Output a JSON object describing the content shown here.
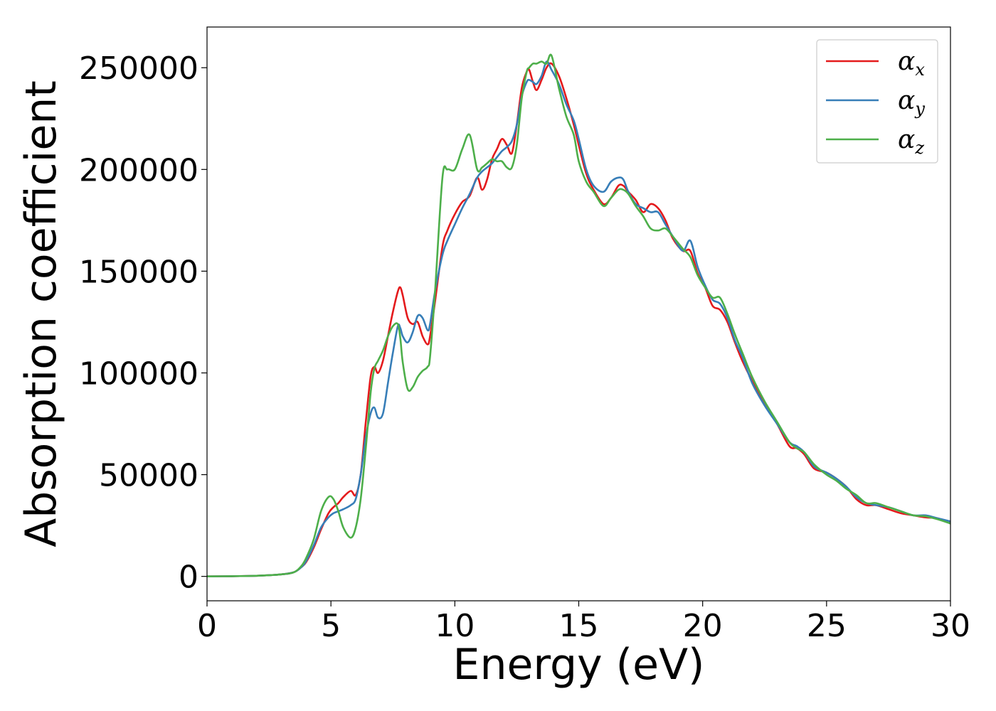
{
  "chart_data": {
    "type": "line",
    "title": "",
    "xlabel": "Energy (eV)",
    "ylabel": "Absorption coefficient",
    "xlim": [
      0,
      30
    ],
    "ylim": [
      -12000,
      270000
    ],
    "xticks": [
      0,
      5,
      10,
      15,
      20,
      25,
      30
    ],
    "yticks": [
      0,
      50000,
      100000,
      150000,
      200000,
      250000
    ],
    "grid": false,
    "legend_position": "top-right",
    "series": [
      {
        "name": "α_x",
        "base": "α",
        "sub": "x",
        "color": "#e41a1c",
        "x": [
          0,
          1,
          2,
          3,
          3.5,
          3.8,
          4.0,
          4.3,
          4.6,
          4.9,
          5.1,
          5.3,
          5.5,
          5.8,
          6.0,
          6.2,
          6.4,
          6.6,
          6.75,
          6.9,
          7.1,
          7.3,
          7.5,
          7.7,
          7.8,
          7.9,
          8.1,
          8.3,
          8.5,
          8.7,
          8.9,
          9.0,
          9.2,
          9.5,
          9.7,
          10.0,
          10.3,
          10.6,
          10.9,
          11.1,
          11.3,
          11.5,
          11.7,
          11.9,
          12.1,
          12.3,
          12.5,
          12.7,
          12.9,
          13.0,
          13.15,
          13.3,
          13.5,
          13.7,
          13.9,
          14.2,
          14.5,
          14.8,
          15.0,
          15.3,
          15.6,
          16.0,
          16.3,
          16.6,
          16.8,
          17.0,
          17.3,
          17.6,
          17.9,
          18.2,
          18.5,
          18.8,
          19.2,
          19.5,
          19.8,
          20.1,
          20.4,
          20.7,
          21.0,
          21.3,
          21.6,
          22.0,
          22.5,
          23.0,
          23.5,
          23.8,
          24.1,
          24.5,
          25.0,
          25.4,
          25.8,
          26.2,
          26.6,
          27.0,
          27.5,
          28.0,
          28.5,
          29.0,
          29.5,
          30.0
        ],
        "y": [
          0,
          100,
          300,
          1000,
          2000,
          4500,
          7000,
          14000,
          23000,
          31000,
          34000,
          36000,
          39000,
          42000,
          40000,
          50000,
          75000,
          98000,
          103000,
          100000,
          106000,
          118000,
          130000,
          140000,
          142000,
          138000,
          127000,
          124000,
          125000,
          118000,
          114000,
          118000,
          135000,
          162000,
          170000,
          178000,
          184000,
          187000,
          196000,
          190000,
          195000,
          205000,
          210000,
          215000,
          212000,
          208000,
          222000,
          240000,
          248000,
          249000,
          243000,
          239000,
          244000,
          250000,
          252000,
          246000,
          235000,
          222000,
          212000,
          198000,
          190000,
          183000,
          186000,
          192000,
          192000,
          189000,
          185000,
          179000,
          183000,
          181000,
          175000,
          166000,
          160000,
          160000,
          149000,
          142000,
          133000,
          131000,
          125000,
          115000,
          106000,
          96000,
          85000,
          75000,
          64000,
          63000,
          60000,
          53000,
          51000,
          48000,
          44000,
          38000,
          35000,
          35000,
          33000,
          31000,
          30000,
          29000,
          28500,
          26000
        ]
      },
      {
        "name": "α_y",
        "base": "α",
        "sub": "y",
        "color": "#377eb8",
        "x": [
          0,
          1,
          2,
          3,
          3.5,
          3.8,
          4.0,
          4.3,
          4.6,
          4.9,
          5.1,
          5.3,
          5.5,
          5.8,
          6.0,
          6.2,
          6.4,
          6.6,
          6.75,
          6.9,
          7.1,
          7.3,
          7.5,
          7.7,
          7.8,
          7.9,
          8.1,
          8.3,
          8.5,
          8.7,
          8.9,
          9.0,
          9.2,
          9.5,
          9.7,
          10.0,
          10.3,
          10.6,
          10.9,
          11.1,
          11.3,
          11.5,
          11.7,
          11.9,
          12.1,
          12.3,
          12.5,
          12.7,
          12.9,
          13.0,
          13.15,
          13.3,
          13.5,
          13.7,
          13.9,
          14.2,
          14.5,
          14.8,
          15.0,
          15.3,
          15.6,
          16.0,
          16.3,
          16.6,
          16.8,
          17.0,
          17.3,
          17.6,
          17.9,
          18.2,
          18.5,
          18.8,
          19.2,
          19.5,
          19.8,
          20.1,
          20.4,
          20.7,
          21.0,
          21.3,
          21.6,
          22.0,
          22.5,
          23.0,
          23.5,
          23.8,
          24.1,
          24.5,
          25.0,
          25.4,
          25.8,
          26.2,
          26.6,
          27.0,
          27.5,
          28.0,
          28.5,
          29.0,
          29.5,
          30.0
        ],
        "y": [
          0,
          100,
          300,
          1000,
          2000,
          4500,
          7500,
          15000,
          24000,
          29000,
          31000,
          32000,
          33000,
          35000,
          38000,
          50000,
          68000,
          80000,
          83000,
          78000,
          80000,
          95000,
          110000,
          123000,
          122000,
          118000,
          115000,
          120000,
          128000,
          127000,
          121000,
          124000,
          140000,
          158000,
          165000,
          173000,
          181000,
          188000,
          196000,
          199000,
          201000,
          203000,
          206000,
          209000,
          211000,
          214000,
          222000,
          236000,
          243000,
          244000,
          243000,
          242000,
          246000,
          253000,
          249000,
          242000,
          232000,
          224000,
          215000,
          200000,
          192000,
          189000,
          194000,
          196000,
          195000,
          189000,
          183000,
          181000,
          179000,
          179000,
          173000,
          167000,
          160000,
          165000,
          152000,
          143000,
          136000,
          134000,
          127000,
          116000,
          108000,
          95000,
          84000,
          75000,
          66000,
          64000,
          61000,
          54000,
          51000,
          48000,
          44000,
          39000,
          36000,
          35000,
          34000,
          32000,
          30000,
          30000,
          28500,
          27000
        ]
      },
      {
        "name": "α_z",
        "base": "α",
        "sub": "z",
        "color": "#4daf4a",
        "x": [
          0,
          1,
          2,
          3,
          3.5,
          3.8,
          4.0,
          4.3,
          4.6,
          4.9,
          5.1,
          5.3,
          5.5,
          5.8,
          6.0,
          6.2,
          6.4,
          6.6,
          6.75,
          6.9,
          7.1,
          7.3,
          7.5,
          7.7,
          7.8,
          7.9,
          8.1,
          8.3,
          8.5,
          8.7,
          8.9,
          9.0,
          9.2,
          9.5,
          9.7,
          10.0,
          10.3,
          10.6,
          10.9,
          11.1,
          11.3,
          11.5,
          11.7,
          11.9,
          12.1,
          12.3,
          12.5,
          12.7,
          12.9,
          13.0,
          13.15,
          13.3,
          13.5,
          13.7,
          13.9,
          14.2,
          14.5,
          14.8,
          15.0,
          15.3,
          15.6,
          16.0,
          16.3,
          16.6,
          16.8,
          17.0,
          17.3,
          17.6,
          17.9,
          18.2,
          18.5,
          18.8,
          19.2,
          19.5,
          19.8,
          20.1,
          20.4,
          20.7,
          21.0,
          21.3,
          21.6,
          22.0,
          22.5,
          23.0,
          23.5,
          23.8,
          24.1,
          24.5,
          25.0,
          25.4,
          25.8,
          26.2,
          26.6,
          27.0,
          27.5,
          28.0,
          28.5,
          29.0,
          29.5,
          30.0
        ],
        "y": [
          0,
          100,
          300,
          1000,
          2000,
          5000,
          9000,
          18000,
          32000,
          39000,
          38000,
          32000,
          24000,
          19000,
          24000,
          38000,
          62000,
          90000,
          102000,
          106000,
          111000,
          118000,
          123000,
          124000,
          117000,
          105000,
          92000,
          93000,
          98000,
          101000,
          103000,
          108000,
          140000,
          196000,
          200000,
          200000,
          210000,
          217000,
          200000,
          201000,
          203000,
          205000,
          204000,
          204000,
          201000,
          201000,
          212000,
          235000,
          248000,
          250000,
          252000,
          252000,
          253000,
          252000,
          256000,
          240000,
          226000,
          217000,
          204000,
          194000,
          189000,
          182000,
          186000,
          190000,
          190000,
          188000,
          182000,
          177000,
          171000,
          170000,
          171000,
          167000,
          161000,
          157000,
          148000,
          142000,
          137000,
          137000,
          129000,
          119000,
          110000,
          98000,
          86000,
          76000,
          66000,
          63000,
          61000,
          55000,
          50000,
          47000,
          43000,
          40000,
          36000,
          36000,
          34000,
          32000,
          30000,
          29500,
          28000,
          26000
        ]
      }
    ]
  }
}
